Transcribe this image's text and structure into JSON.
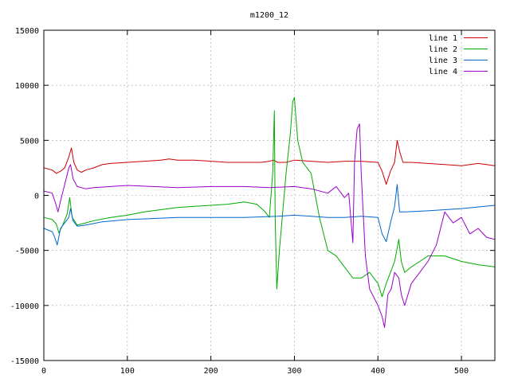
{
  "chart_data": {
    "type": "line",
    "title": "m1200_12",
    "xlabel": "",
    "ylabel": "",
    "xlim": [
      0,
      540
    ],
    "ylim": [
      -15000,
      15000
    ],
    "grid": true,
    "legend_position": "top-right",
    "x_ticks": [
      0,
      100,
      200,
      300,
      400,
      500
    ],
    "y_ticks": [
      -15000,
      -10000,
      -5000,
      0,
      5000,
      10000,
      15000
    ],
    "series": [
      {
        "name": "line 1",
        "color": "#cc0000",
        "x": [
          0,
          10,
          15,
          20,
          25,
          30,
          33,
          36,
          40,
          45,
          50,
          60,
          70,
          80,
          100,
          120,
          140,
          150,
          160,
          180,
          200,
          220,
          240,
          260,
          270,
          275,
          280,
          290,
          300,
          320,
          340,
          360,
          380,
          400,
          405,
          410,
          415,
          420,
          423,
          426,
          430,
          440,
          460,
          480,
          500,
          520,
          540
        ],
        "y": [
          2500,
          2300,
          2000,
          2200,
          2500,
          3500,
          4300,
          3000,
          2300,
          2100,
          2300,
          2500,
          2800,
          2900,
          3000,
          3100,
          3200,
          3300,
          3200,
          3200,
          3100,
          3000,
          3000,
          3000,
          3100,
          3200,
          3000,
          3000,
          3200,
          3100,
          3000,
          3100,
          3100,
          3000,
          2200,
          1000,
          2200,
          3000,
          5000,
          4000,
          3000,
          3000,
          2900,
          2800,
          2700,
          2900,
          2700
        ]
      },
      {
        "name": "line 2",
        "color": "#00aa00",
        "x": [
          0,
          10,
          15,
          18,
          22,
          28,
          31,
          34,
          40,
          50,
          60,
          80,
          100,
          120,
          140,
          160,
          180,
          200,
          220,
          240,
          255,
          265,
          270,
          274,
          276,
          277,
          279,
          282,
          286,
          290,
          295,
          298,
          300,
          304,
          310,
          320,
          330,
          340,
          350,
          360,
          370,
          380,
          390,
          400,
          405,
          410,
          415,
          420,
          425,
          428,
          432,
          440,
          450,
          460,
          480,
          500,
          520,
          540
        ],
        "y": [
          -2000,
          -2200,
          -2600,
          -3400,
          -2800,
          -1700,
          -200,
          -2000,
          -2700,
          -2500,
          -2300,
          -2000,
          -1800,
          -1500,
          -1300,
          -1100,
          -1000,
          -900,
          -800,
          -600,
          -800,
          -1500,
          -2000,
          2000,
          7700,
          -2000,
          -8500,
          -5000,
          -1500,
          2000,
          5500,
          8500,
          8900,
          5000,
          3000,
          2000,
          -2000,
          -5000,
          -5500,
          -6500,
          -7500,
          -7500,
          -7000,
          -8000,
          -9200,
          -8000,
          -7000,
          -6000,
          -4000,
          -6000,
          -7000,
          -6500,
          -6000,
          -5500,
          -5500,
          -6000,
          -6300,
          -6500
        ]
      },
      {
        "name": "line 3",
        "color": "#0066cc",
        "x": [
          0,
          10,
          13,
          16,
          20,
          25,
          30,
          32,
          35,
          40,
          50,
          70,
          100,
          130,
          160,
          200,
          240,
          280,
          300,
          320,
          340,
          360,
          380,
          400,
          405,
          410,
          415,
          420,
          423,
          426,
          430,
          460,
          500,
          540
        ],
        "y": [
          -3000,
          -3300,
          -3800,
          -4500,
          -3000,
          -2500,
          -2000,
          -1200,
          -2300,
          -2800,
          -2700,
          -2400,
          -2200,
          -2100,
          -2000,
          -2000,
          -2000,
          -1900,
          -1800,
          -1900,
          -2000,
          -2000,
          -1900,
          -2000,
          -3500,
          -4200,
          -2500,
          -1000,
          1000,
          -1500,
          -1500,
          -1400,
          -1200,
          -900
        ]
      },
      {
        "name": "line 4",
        "color": "#9900cc",
        "x": [
          0,
          10,
          14,
          17,
          20,
          25,
          30,
          32,
          35,
          40,
          50,
          60,
          80,
          100,
          130,
          160,
          200,
          240,
          270,
          300,
          320,
          340,
          350,
          360,
          365,
          370,
          372,
          375,
          378,
          380,
          385,
          390,
          400,
          405,
          408,
          412,
          416,
          420,
          425,
          428,
          432,
          440,
          450,
          460,
          470,
          480,
          490,
          500,
          510,
          520,
          530,
          540
        ],
        "y": [
          400,
          200,
          -700,
          -1500,
          -500,
          1000,
          2500,
          2800,
          1500,
          800,
          600,
          700,
          800,
          900,
          800,
          700,
          800,
          800,
          700,
          800,
          600,
          200,
          800,
          -200,
          200,
          -4300,
          3000,
          6000,
          6500,
          2000,
          -5500,
          -8500,
          -10000,
          -11000,
          -12000,
          -9000,
          -8500,
          -7000,
          -7500,
          -9000,
          -10000,
          -8000,
          -7000,
          -6000,
          -4500,
          -1500,
          -2500,
          -2000,
          -3500,
          -3000,
          -3800,
          -4000
        ]
      }
    ]
  }
}
